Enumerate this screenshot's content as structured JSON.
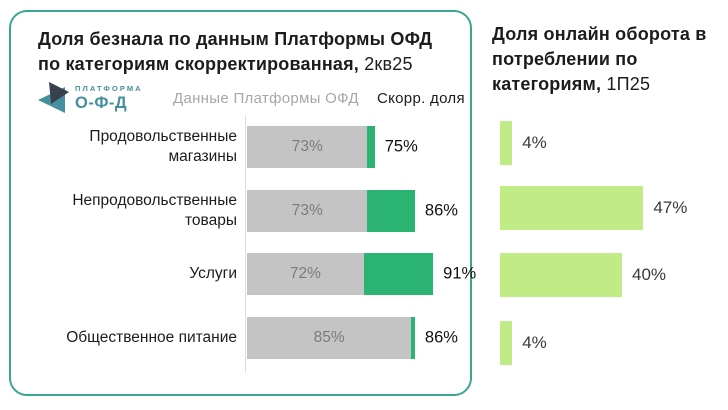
{
  "colors": {
    "panel_border": "#3aa68f",
    "bar_gray": "#c4c4c4",
    "bar_green": "#2bb471",
    "bar_light_green": "#c1eb84",
    "logo_teal": "#44909c",
    "logo_dark": "#37424c",
    "legend_gray": "#a7a7a7",
    "inbar_text_gray": "#7b7b7b",
    "axis_line": "#dddddd"
  },
  "left_panel": {
    "title_line1": "Доля безнала по данным Платформы ОФД",
    "title_line2_bold": "по категориям скорректированная,",
    "title_suffix": " 2кв25",
    "logo": {
      "top": "ПЛАТФОРМА",
      "bottom": "О-Ф-Д"
    },
    "legend": {
      "base": "Данные Платформы ОФД",
      "adjusted": "Скорр. доля"
    }
  },
  "right_panel": {
    "title_line1": "Доля онлайн оборота в",
    "title_line2": "потреблении по",
    "title_line3_bold": "категориям,",
    "title_suffix": " 1П25"
  },
  "chart_data": [
    {
      "type": "bar",
      "orientation": "horizontal",
      "title": "Доля безнала по данным Платформы ОФД по категориям скорректированная, 2кв25",
      "categories": [
        "Продовольственные магазины",
        "Непродовольственные товары",
        "Услуги",
        "Общественное питание"
      ],
      "series": [
        {
          "name": "Данные Платформы ОФД",
          "values": [
            73,
            73,
            72,
            85
          ],
          "color": "#c4c4c4"
        },
        {
          "name": "Скорр. доля",
          "values": [
            75,
            86,
            91,
            86
          ],
          "color": "#2bb471"
        }
      ],
      "unit": "%",
      "xlim": [
        40,
        95
      ],
      "grid": false,
      "legend_position": "top",
      "value_labels": "base inside gray segment, adjusted outside bar end"
    },
    {
      "type": "bar",
      "orientation": "horizontal",
      "title": "Доля онлайн оборота в потреблении по категориям, 1П25",
      "values": [
        4,
        47,
        40,
        4
      ],
      "unit": "%",
      "xlim": [
        0,
        100
      ],
      "grid": false,
      "legend_position": "none",
      "value_labels": "outside bar end"
    }
  ]
}
